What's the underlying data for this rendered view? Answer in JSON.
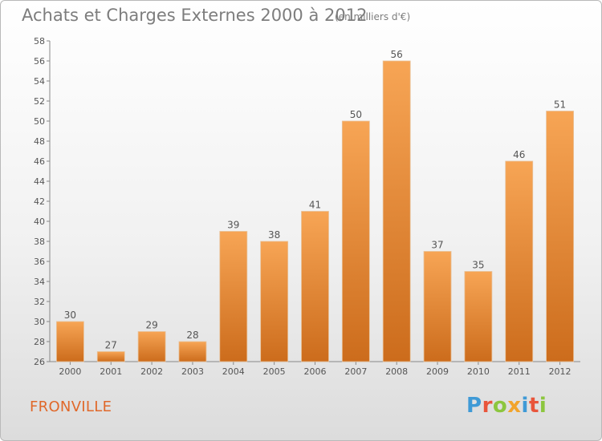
{
  "header": {
    "title": "Achats et Charges Externes 2000 à 2012",
    "subtitle": "(en milliers d'€)"
  },
  "footer": {
    "town": "FRONVILLE",
    "logo": "Proxiti"
  },
  "colors": {
    "bar_top": "#f7a555",
    "bar_bottom": "#cc6c1c",
    "town": "#e0682a"
  },
  "chart_data": {
    "type": "bar",
    "categories": [
      "2000",
      "2001",
      "2002",
      "2003",
      "2004",
      "2005",
      "2006",
      "2007",
      "2008",
      "2009",
      "2010",
      "2011",
      "2012"
    ],
    "values": [
      30,
      27,
      29,
      28,
      39,
      38,
      41,
      50,
      56,
      37,
      35,
      46,
      51
    ],
    "ylim": [
      26,
      58
    ],
    "yticks": [
      26,
      28,
      30,
      32,
      34,
      36,
      38,
      40,
      42,
      44,
      46,
      48,
      50,
      52,
      54,
      56,
      58
    ],
    "grid": false,
    "data_labels": true
  }
}
